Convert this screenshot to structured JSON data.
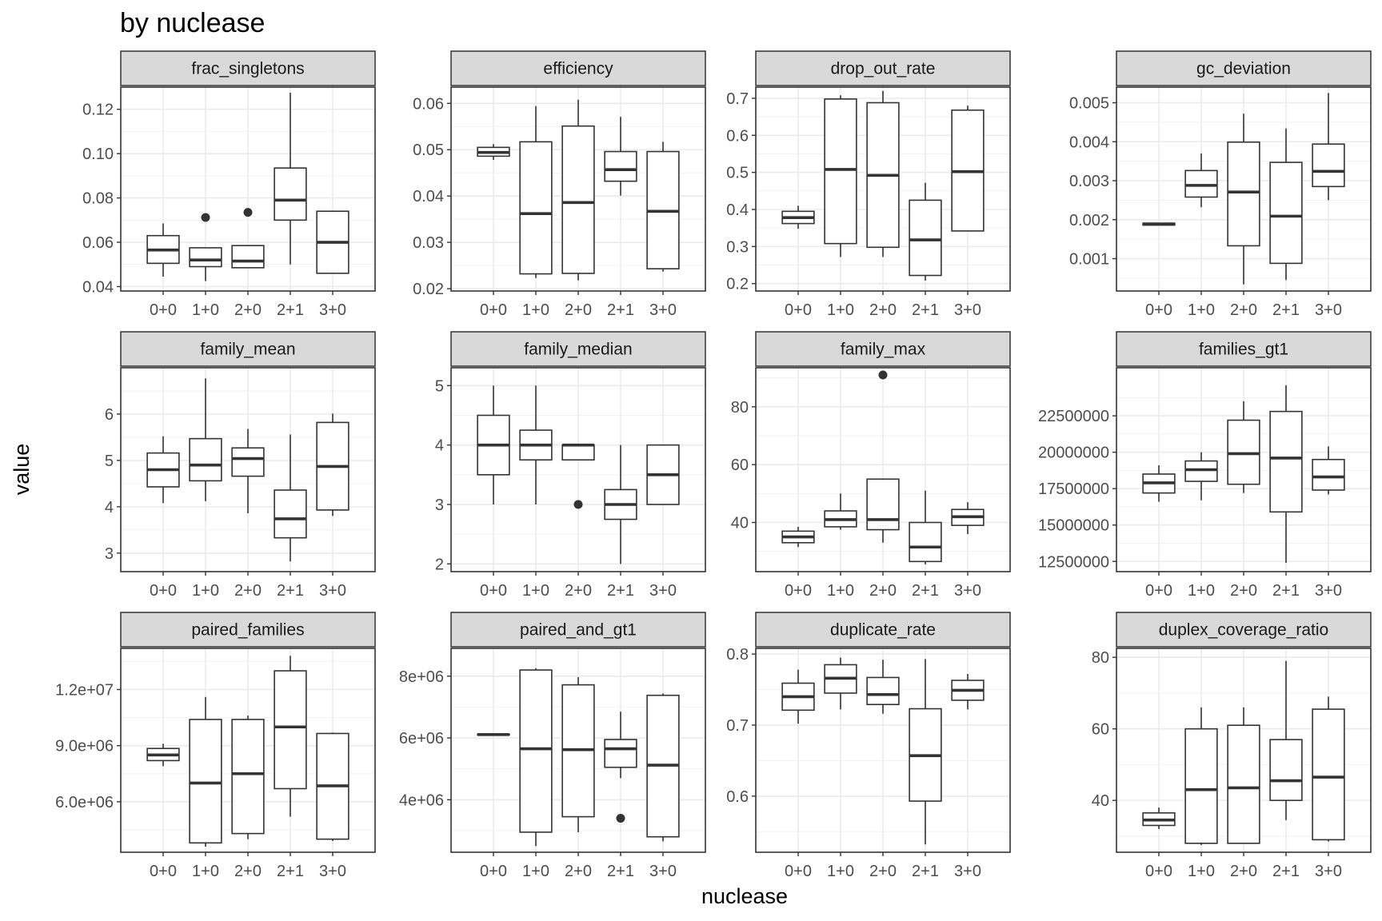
{
  "chart_data": {
    "type": "box",
    "title": "by nuclease",
    "xlabel": "nuclease",
    "ylabel": "value",
    "categories": [
      "0+0",
      "1+0",
      "2+0",
      "2+1",
      "3+0"
    ],
    "panels": [
      {
        "name": "frac_singletons",
        "ylim": [
          0.038,
          0.13
        ],
        "yticks": [
          0.04,
          0.06,
          0.08,
          0.1,
          0.12
        ],
        "ytick_labels": [
          "0.04",
          "0.06",
          "0.08",
          "0.10",
          "0.12"
        ],
        "boxes": [
          {
            "min": 0.0445,
            "q1": 0.0505,
            "median": 0.0565,
            "q3": 0.063,
            "max": 0.0685,
            "outliers": []
          },
          {
            "min": 0.0425,
            "q1": 0.049,
            "median": 0.052,
            "q3": 0.0575,
            "max": 0.0575,
            "outliers": [
              0.0712
            ]
          },
          {
            "min": 0.0485,
            "q1": 0.0485,
            "median": 0.0515,
            "q3": 0.0585,
            "max": 0.0585,
            "outliers": [
              0.0735
            ]
          },
          {
            "min": 0.05,
            "q1": 0.07,
            "median": 0.079,
            "q3": 0.0935,
            "max": 0.1275,
            "outliers": []
          },
          {
            "min": 0.046,
            "q1": 0.046,
            "median": 0.06,
            "q3": 0.074,
            "max": 0.074,
            "outliers": []
          }
        ]
      },
      {
        "name": "efficiency",
        "ylim": [
          0.0195,
          0.0635
        ],
        "yticks": [
          0.02,
          0.03,
          0.04,
          0.05,
          0.06
        ],
        "ytick_labels": [
          "0.02",
          "0.03",
          "0.04",
          "0.05",
          "0.06"
        ],
        "boxes": [
          {
            "min": 0.0478,
            "q1": 0.0486,
            "median": 0.0494,
            "q3": 0.0505,
            "max": 0.0512,
            "outliers": []
          },
          {
            "min": 0.0223,
            "q1": 0.0232,
            "median": 0.0362,
            "q3": 0.0517,
            "max": 0.0594,
            "outliers": []
          },
          {
            "min": 0.0218,
            "q1": 0.0233,
            "median": 0.0386,
            "q3": 0.0551,
            "max": 0.0608,
            "outliers": []
          },
          {
            "min": 0.0401,
            "q1": 0.0432,
            "median": 0.0457,
            "q3": 0.0496,
            "max": 0.0571,
            "outliers": []
          },
          {
            "min": 0.0237,
            "q1": 0.0243,
            "median": 0.0367,
            "q3": 0.0496,
            "max": 0.0517,
            "outliers": []
          }
        ]
      },
      {
        "name": "drop_out_rate",
        "ylim": [
          0.18,
          0.73
        ],
        "yticks": [
          0.2,
          0.3,
          0.4,
          0.5,
          0.6,
          0.7
        ],
        "ytick_labels": [
          "0.2",
          "0.3",
          "0.4",
          "0.5",
          "0.6",
          "0.7"
        ],
        "boxes": [
          {
            "min": 0.348,
            "q1": 0.362,
            "median": 0.378,
            "q3": 0.395,
            "max": 0.41,
            "outliers": []
          },
          {
            "min": 0.272,
            "q1": 0.308,
            "median": 0.508,
            "q3": 0.698,
            "max": 0.708,
            "outliers": []
          },
          {
            "min": 0.272,
            "q1": 0.298,
            "median": 0.492,
            "q3": 0.688,
            "max": 0.72,
            "outliers": []
          },
          {
            "min": 0.208,
            "q1": 0.222,
            "median": 0.318,
            "q3": 0.425,
            "max": 0.472,
            "outliers": []
          },
          {
            "min": 0.342,
            "q1": 0.342,
            "median": 0.502,
            "q3": 0.668,
            "max": 0.68,
            "outliers": []
          }
        ]
      },
      {
        "name": "gc_deviation",
        "ylim": [
          0.00017,
          0.0054
        ],
        "yticks": [
          0.001,
          0.002,
          0.003,
          0.004,
          0.005
        ],
        "ytick_labels": [
          "0.001",
          "0.002",
          "0.003",
          "0.004",
          "0.005"
        ],
        "boxes": [
          {
            "min": 0.00186,
            "q1": 0.00186,
            "median": 0.00189,
            "q3": 0.00191,
            "max": 0.00191,
            "outliers": []
          },
          {
            "min": 0.00232,
            "q1": 0.00258,
            "median": 0.00288,
            "q3": 0.00326,
            "max": 0.0037,
            "outliers": []
          },
          {
            "min": 0.00034,
            "q1": 0.00133,
            "median": 0.00271,
            "q3": 0.00399,
            "max": 0.00472,
            "outliers": []
          },
          {
            "min": 0.00045,
            "q1": 0.00088,
            "median": 0.00209,
            "q3": 0.00347,
            "max": 0.00434,
            "outliers": []
          },
          {
            "min": 0.0025,
            "q1": 0.00285,
            "median": 0.00324,
            "q3": 0.00394,
            "max": 0.00525,
            "outliers": []
          }
        ]
      },
      {
        "name": "family_mean",
        "ylim": [
          2.6,
          7.0
        ],
        "yticks": [
          3,
          4,
          5,
          6
        ],
        "ytick_labels": [
          "3",
          "4",
          "5",
          "6"
        ],
        "boxes": [
          {
            "min": 4.08,
            "q1": 4.43,
            "median": 4.8,
            "q3": 5.16,
            "max": 5.52,
            "outliers": []
          },
          {
            "min": 4.12,
            "q1": 4.56,
            "median": 4.9,
            "q3": 5.47,
            "max": 6.77,
            "outliers": []
          },
          {
            "min": 3.86,
            "q1": 4.66,
            "median": 5.04,
            "q3": 5.27,
            "max": 5.68,
            "outliers": []
          },
          {
            "min": 2.82,
            "q1": 3.33,
            "median": 3.74,
            "q3": 4.36,
            "max": 5.56,
            "outliers": []
          },
          {
            "min": 3.8,
            "q1": 3.93,
            "median": 4.87,
            "q3": 5.82,
            "max": 6.01,
            "outliers": []
          }
        ]
      },
      {
        "name": "family_median",
        "ylim": [
          1.87,
          5.3
        ],
        "yticks": [
          2,
          3,
          4,
          5
        ],
        "ytick_labels": [
          "2",
          "3",
          "4",
          "5"
        ],
        "boxes": [
          {
            "min": 3,
            "q1": 3.5,
            "median": 4,
            "q3": 4.5,
            "max": 5,
            "outliers": []
          },
          {
            "min": 3,
            "q1": 3.75,
            "median": 4,
            "q3": 4.25,
            "max": 5,
            "outliers": []
          },
          {
            "min": 3.75,
            "q1": 3.75,
            "median": 4,
            "q3": 4,
            "max": 4,
            "outliers": [
              3
            ]
          },
          {
            "min": 2,
            "q1": 2.75,
            "median": 3,
            "q3": 3.25,
            "max": 4,
            "outliers": []
          },
          {
            "min": 3,
            "q1": 3,
            "median": 3.5,
            "q3": 4,
            "max": 4,
            "outliers": []
          }
        ]
      },
      {
        "name": "family_max",
        "ylim": [
          23,
          93.5
        ],
        "yticks": [
          40,
          60,
          80
        ],
        "ytick_labels": [
          "40",
          "60",
          "80"
        ],
        "boxes": [
          {
            "min": 31.5,
            "q1": 33,
            "median": 35,
            "q3": 37,
            "max": 38.5,
            "outliers": []
          },
          {
            "min": 37.5,
            "q1": 38.5,
            "median": 41,
            "q3": 44,
            "max": 50,
            "outliers": []
          },
          {
            "min": 33,
            "q1": 37.5,
            "median": 41,
            "q3": 55,
            "max": 55,
            "outliers": [
              91
            ]
          },
          {
            "min": 25.5,
            "q1": 26.5,
            "median": 31.5,
            "q3": 40,
            "max": 51,
            "outliers": []
          },
          {
            "min": 36,
            "q1": 39,
            "median": 42,
            "q3": 44.5,
            "max": 47,
            "outliers": []
          }
        ]
      },
      {
        "name": "families_gt1",
        "ylim": [
          11800000,
          25800000
        ],
        "yticks": [
          12500000,
          15000000,
          17500000,
          20000000,
          22500000
        ],
        "ytick_labels": [
          "12500000",
          "15000000",
          "17500000",
          "20000000",
          "22500000"
        ],
        "boxes": [
          {
            "min": 16600000,
            "q1": 17200000,
            "median": 17900000,
            "q3": 18500000,
            "max": 19100000,
            "outliers": []
          },
          {
            "min": 16700000,
            "q1": 18000000,
            "median": 18800000,
            "q3": 19400000,
            "max": 20000000,
            "outliers": []
          },
          {
            "min": 17200000,
            "q1": 17800000,
            "median": 19900000,
            "q3": 22200000,
            "max": 23500000,
            "outliers": []
          },
          {
            "min": 12400000,
            "q1": 15900000,
            "median": 19600000,
            "q3": 22800000,
            "max": 24600000,
            "outliers": []
          },
          {
            "min": 17100000,
            "q1": 17400000,
            "median": 18300000,
            "q3": 19500000,
            "max": 20400000,
            "outliers": []
          }
        ]
      },
      {
        "name": "paired_families",
        "ylim": [
          3300000,
          14200000
        ],
        "yticks": [
          6000000,
          9000000,
          12000000
        ],
        "ytick_labels": [
          "6.0e+06",
          "9.0e+06",
          "1.2e+07"
        ],
        "boxes": [
          {
            "min": 7900000,
            "q1": 8200000,
            "median": 8500000,
            "q3": 8850000,
            "max": 9100000,
            "outliers": []
          },
          {
            "min": 3600000,
            "q1": 3800000,
            "median": 7000000,
            "q3": 10400000,
            "max": 11600000,
            "outliers": []
          },
          {
            "min": 4000000,
            "q1": 4300000,
            "median": 7500000,
            "q3": 10400000,
            "max": 10600000,
            "outliers": []
          },
          {
            "min": 5200000,
            "q1": 6700000,
            "median": 10000000,
            "q3": 13000000,
            "max": 13800000,
            "outliers": []
          },
          {
            "min": 3900000,
            "q1": 4000000,
            "median": 6850000,
            "q3": 9650000,
            "max": 9700000,
            "outliers": []
          }
        ]
      },
      {
        "name": "paired_and_gt1",
        "ylim": [
          2300000,
          8900000
        ],
        "yticks": [
          4000000,
          6000000,
          8000000
        ],
        "ytick_labels": [
          "4e+06",
          "6e+06",
          "8e+06"
        ],
        "boxes": [
          {
            "min": 6100000,
            "q1": 6100000,
            "median": 6110000,
            "q3": 6120000,
            "max": 6120000,
            "outliers": []
          },
          {
            "min": 2500000,
            "q1": 2950000,
            "median": 5650000,
            "q3": 8200000,
            "max": 8260000,
            "outliers": []
          },
          {
            "min": 2950000,
            "q1": 3450000,
            "median": 5620000,
            "q3": 7720000,
            "max": 7970000,
            "outliers": []
          },
          {
            "min": 4700000,
            "q1": 5050000,
            "median": 5650000,
            "q3": 5950000,
            "max": 6850000,
            "outliers": [
              3400000
            ]
          },
          {
            "min": 2650000,
            "q1": 2800000,
            "median": 5120000,
            "q3": 7380000,
            "max": 7440000,
            "outliers": []
          }
        ]
      },
      {
        "name": "duplicate_rate",
        "ylim": [
          0.521,
          0.808
        ],
        "yticks": [
          0.6,
          0.7,
          0.8
        ],
        "ytick_labels": [
          "0.6",
          "0.7",
          "0.8"
        ],
        "boxes": [
          {
            "min": 0.702,
            "q1": 0.721,
            "median": 0.74,
            "q3": 0.759,
            "max": 0.778,
            "outliers": []
          },
          {
            "min": 0.722,
            "q1": 0.745,
            "median": 0.766,
            "q3": 0.785,
            "max": 0.795,
            "outliers": []
          },
          {
            "min": 0.716,
            "q1": 0.729,
            "median": 0.743,
            "q3": 0.767,
            "max": 0.792,
            "outliers": []
          },
          {
            "min": 0.532,
            "q1": 0.593,
            "median": 0.657,
            "q3": 0.723,
            "max": 0.793,
            "outliers": []
          },
          {
            "min": 0.722,
            "q1": 0.735,
            "median": 0.749,
            "q3": 0.763,
            "max": 0.772,
            "outliers": []
          }
        ]
      },
      {
        "name": "duplex_coverage_ratio",
        "ylim": [
          25.5,
          82.5
        ],
        "yticks": [
          40,
          60,
          80
        ],
        "ytick_labels": [
          "40",
          "60",
          "80"
        ],
        "boxes": [
          {
            "min": 32,
            "q1": 33,
            "median": 34.5,
            "q3": 36.5,
            "max": 38,
            "outliers": []
          },
          {
            "min": 27.5,
            "q1": 28,
            "median": 43,
            "q3": 60,
            "max": 66,
            "outliers": []
          },
          {
            "min": 28,
            "q1": 28,
            "median": 43.5,
            "q3": 61,
            "max": 66,
            "outliers": []
          },
          {
            "min": 34.5,
            "q1": 40,
            "median": 45.5,
            "q3": 57,
            "max": 79,
            "outliers": []
          },
          {
            "min": 28.5,
            "q1": 29,
            "median": 46.5,
            "q3": 65.5,
            "max": 69,
            "outliers": []
          }
        ]
      }
    ]
  }
}
